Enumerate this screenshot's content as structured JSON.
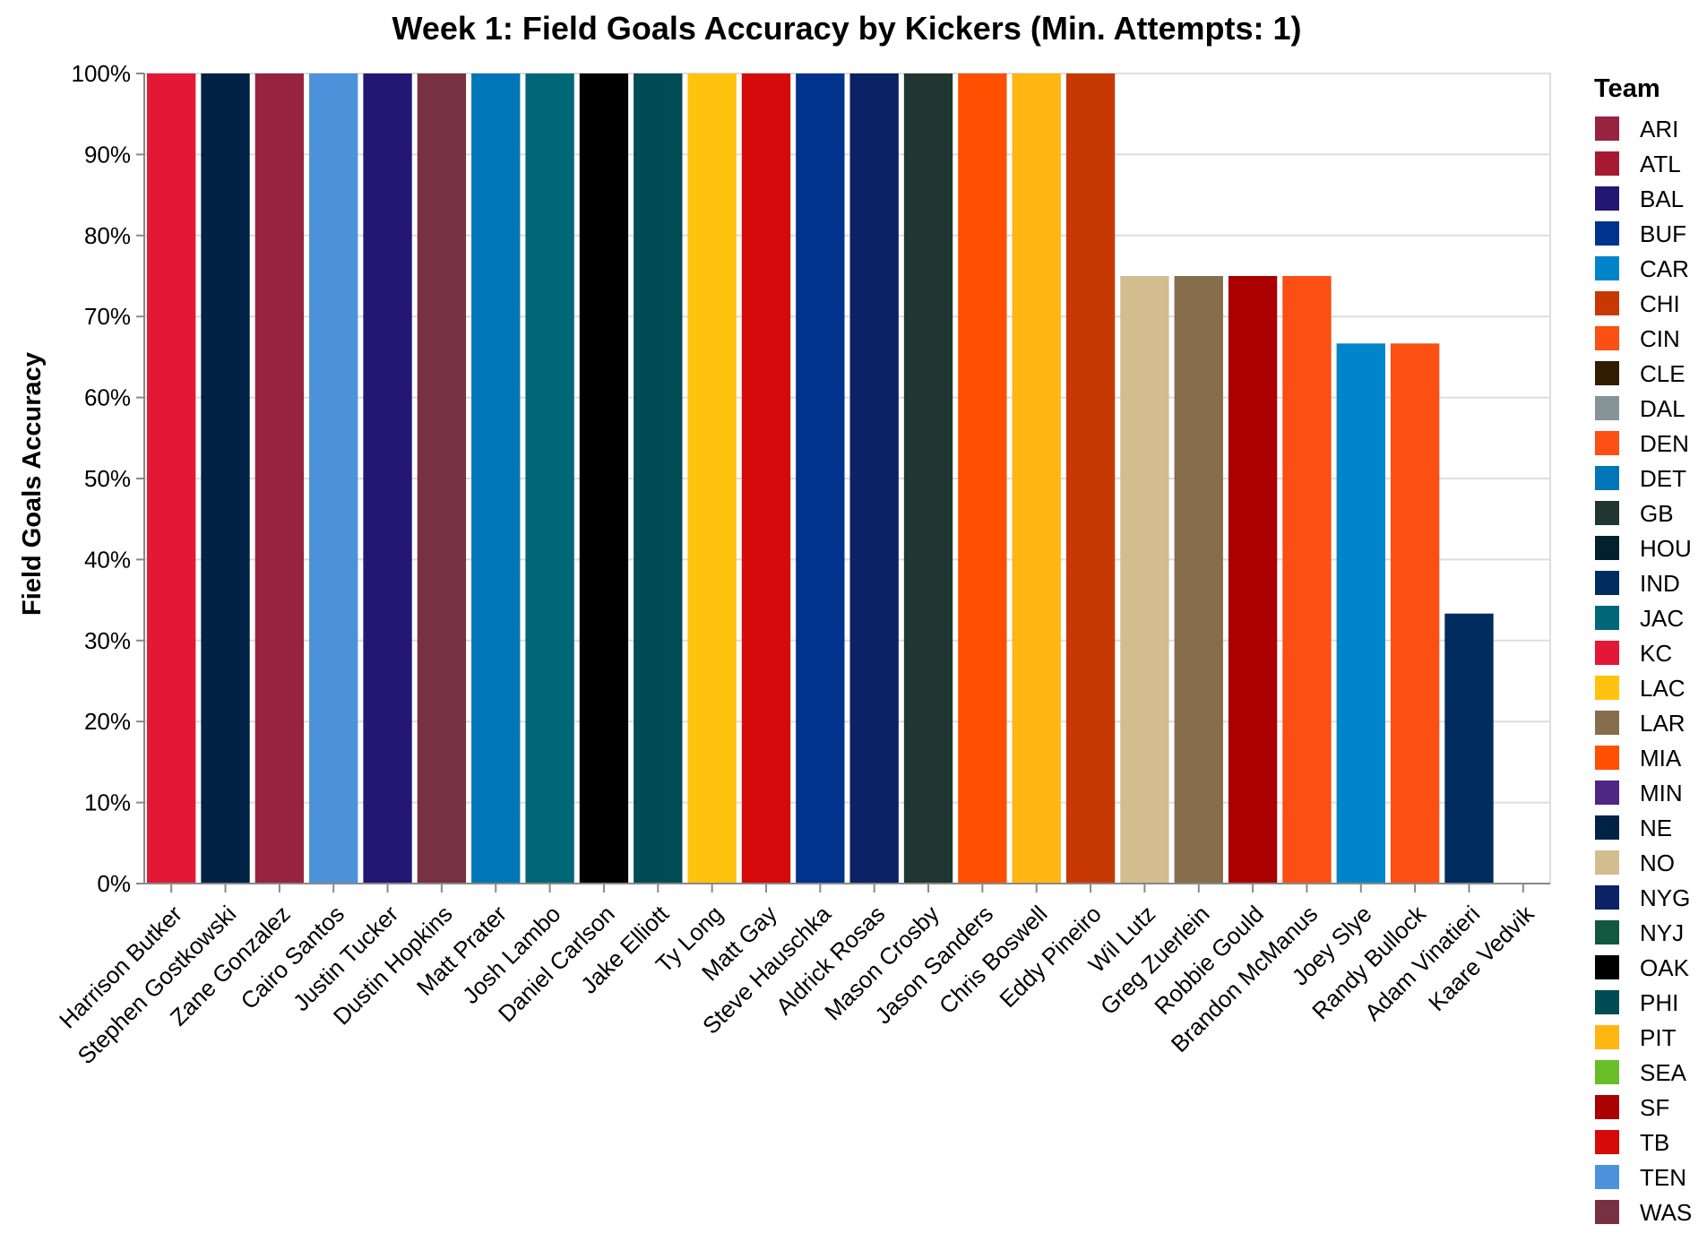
{
  "chart_data": {
    "type": "bar",
    "title": "Week 1: Field Goals Accuracy by Kickers (Min. Attempts: 1)",
    "xlabel": "",
    "ylabel": "Field Goals Accuracy",
    "ylim": [
      0,
      1
    ],
    "y_ticks": [
      "0%",
      "10%",
      "20%",
      "30%",
      "40%",
      "50%",
      "60%",
      "70%",
      "80%",
      "90%",
      "100%"
    ],
    "grid": true,
    "legend_title": "Team",
    "legend_position": "right",
    "categories": [
      "Harrison Butker",
      "Stephen Gostkowski",
      "Zane Gonzalez",
      "Cairo Santos",
      "Justin Tucker",
      "Dustin Hopkins",
      "Matt Prater",
      "Josh Lambo",
      "Daniel Carlson",
      "Jake Elliott",
      "Ty Long",
      "Matt Gay",
      "Steve Hauschka",
      "Aldrick Rosas",
      "Mason Crosby",
      "Jason Sanders",
      "Chris Boswell",
      "Eddy Pineiro",
      "Wil Lutz",
      "Greg Zuerlein",
      "Robbie Gould",
      "Brandon McManus",
      "Joey Slye",
      "Randy Bullock",
      "Adam Vinatieri",
      "Kaare Vedvik"
    ],
    "values": [
      1.0,
      1.0,
      1.0,
      1.0,
      1.0,
      1.0,
      1.0,
      1.0,
      1.0,
      1.0,
      1.0,
      1.0,
      1.0,
      1.0,
      1.0,
      1.0,
      1.0,
      1.0,
      0.75,
      0.75,
      0.75,
      0.75,
      0.6667,
      0.6667,
      0.3333,
      0.0
    ],
    "teams": [
      "KC",
      "NE",
      "ARI",
      "TEN",
      "BAL",
      "WAS",
      "DET",
      "JAC",
      "OAK",
      "PHI",
      "LAC",
      "TB",
      "BUF",
      "NYG",
      "GB",
      "MIA",
      "PIT",
      "CHI",
      "NO",
      "LAR",
      "SF",
      "DEN",
      "CAR",
      "CIN",
      "IND",
      "WAS"
    ],
    "legend": [
      {
        "team": "ARI",
        "color": "#97233F"
      },
      {
        "team": "ATL",
        "color": "#A71930"
      },
      {
        "team": "BAL",
        "color": "#241773"
      },
      {
        "team": "BUF",
        "color": "#00338D"
      },
      {
        "team": "CAR",
        "color": "#0085CA"
      },
      {
        "team": "CHI",
        "color": "#C83803"
      },
      {
        "team": "CIN",
        "color": "#FB4F14"
      },
      {
        "team": "CLE",
        "color": "#311D00"
      },
      {
        "team": "DAL",
        "color": "#869397"
      },
      {
        "team": "DEN",
        "color": "#FB4F14"
      },
      {
        "team": "DET",
        "color": "#0076B6"
      },
      {
        "team": "GB",
        "color": "#203731"
      },
      {
        "team": "HOU",
        "color": "#03202F"
      },
      {
        "team": "IND",
        "color": "#002C5F"
      },
      {
        "team": "JAC",
        "color": "#006778"
      },
      {
        "team": "KC",
        "color": "#E31837"
      },
      {
        "team": "LAC",
        "color": "#FFC20E"
      },
      {
        "team": "LAR",
        "color": "#866D4B"
      },
      {
        "team": "MIA",
        "color": "#FF4F00"
      },
      {
        "team": "MIN",
        "color": "#4F2683"
      },
      {
        "team": "NE",
        "color": "#002244"
      },
      {
        "team": "NO",
        "color": "#D3BC8D"
      },
      {
        "team": "NYG",
        "color": "#0B2265"
      },
      {
        "team": "NYJ",
        "color": "#125740"
      },
      {
        "team": "OAK",
        "color": "#000000"
      },
      {
        "team": "PHI",
        "color": "#004C54"
      },
      {
        "team": "PIT",
        "color": "#FFB612"
      },
      {
        "team": "SEA",
        "color": "#69BE28"
      },
      {
        "team": "SF",
        "color": "#AA0000"
      },
      {
        "team": "TB",
        "color": "#D50A0A"
      },
      {
        "team": "TEN",
        "color": "#4B92DB"
      },
      {
        "team": "WAS",
        "color": "#773141"
      }
    ]
  }
}
